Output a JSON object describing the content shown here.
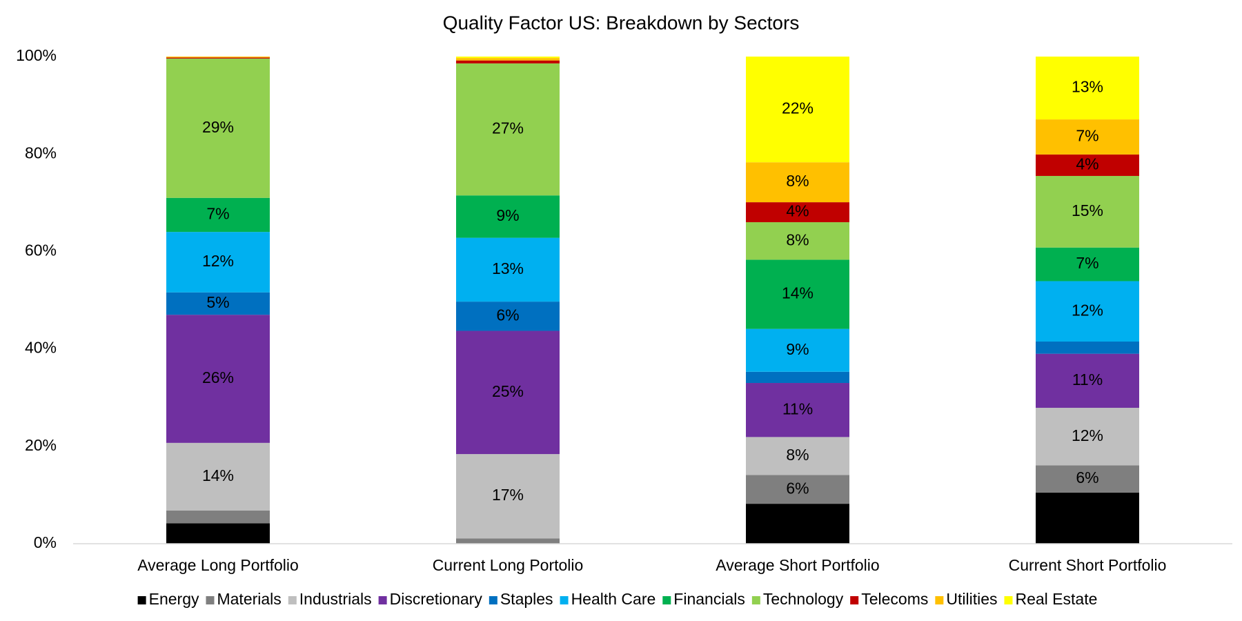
{
  "chart_data": {
    "type": "stacked_bar",
    "title": "Quality Factor US: Breakdown by Sectors",
    "categories": [
      "Average Long Portfolio",
      "Current Long Portolio",
      "Average Short Portfolio",
      "Current Short Portfolio"
    ],
    "ylim": [
      0,
      100
    ],
    "yticks": [
      {
        "value": 0,
        "label": "0%"
      },
      {
        "value": 20,
        "label": "20%"
      },
      {
        "value": 40,
        "label": "40%"
      },
      {
        "value": 60,
        "label": "60%"
      },
      {
        "value": 80,
        "label": "80%"
      },
      {
        "value": 100,
        "label": "100%"
      }
    ],
    "grid": false,
    "legend": "bottom",
    "series": [
      {
        "name": "Energy",
        "color": "#000000",
        "values": [
          4.2,
          0,
          8.2,
          10.5
        ],
        "value_labels": [
          null,
          null,
          null,
          null
        ]
      },
      {
        "name": "Materials",
        "color": "#7f7f7f",
        "values": [
          2.6,
          1.1,
          5.9,
          5.6
        ],
        "value_labels": [
          null,
          null,
          "6%",
          "6%"
        ]
      },
      {
        "name": "Industrials",
        "color": "#bfbfbf",
        "values": [
          13.9,
          17.3,
          7.8,
          11.8
        ],
        "value_labels": [
          "14%",
          "17%",
          "8%",
          "12%"
        ]
      },
      {
        "name": "Discretionary",
        "color": "#7030a0",
        "values": [
          26.3,
          25.3,
          11.1,
          11.1
        ],
        "value_labels": [
          "26%",
          "25%",
          "11%",
          "11%"
        ]
      },
      {
        "name": "Staples",
        "color": "#0070c0",
        "values": [
          4.6,
          6.0,
          2.3,
          2.5
        ],
        "value_labels": [
          "5%",
          "6%",
          null,
          null
        ]
      },
      {
        "name": "Health Care",
        "color": "#00b0f0",
        "values": [
          12.4,
          13.1,
          8.8,
          12.4
        ],
        "value_labels": [
          "12%",
          "13%",
          "9%",
          "12%"
        ]
      },
      {
        "name": "Financials",
        "color": "#00b050",
        "values": [
          7.0,
          8.7,
          14.2,
          6.9
        ],
        "value_labels": [
          "7%",
          "9%",
          "14%",
          "7%"
        ]
      },
      {
        "name": "Technology",
        "color": "#92d050",
        "values": [
          28.6,
          27.1,
          7.7,
          14.7
        ],
        "value_labels": [
          "29%",
          "27%",
          "8%",
          "15%"
        ]
      },
      {
        "name": "Telecoms",
        "color": "#c00000",
        "values": [
          0.2,
          0.6,
          4.1,
          4.4
        ],
        "value_labels": [
          null,
          null,
          "4%",
          "4%"
        ]
      },
      {
        "name": "Utilities",
        "color": "#ffc000",
        "values": [
          0.2,
          0.5,
          8.2,
          7.2
        ],
        "value_labels": [
          null,
          null,
          "8%",
          "7%"
        ]
      },
      {
        "name": "Real Estate",
        "color": "#ffff00",
        "values": [
          0.0,
          0.3,
          21.7,
          12.9
        ],
        "value_labels": [
          null,
          null,
          "22%",
          "13%"
        ]
      }
    ]
  }
}
